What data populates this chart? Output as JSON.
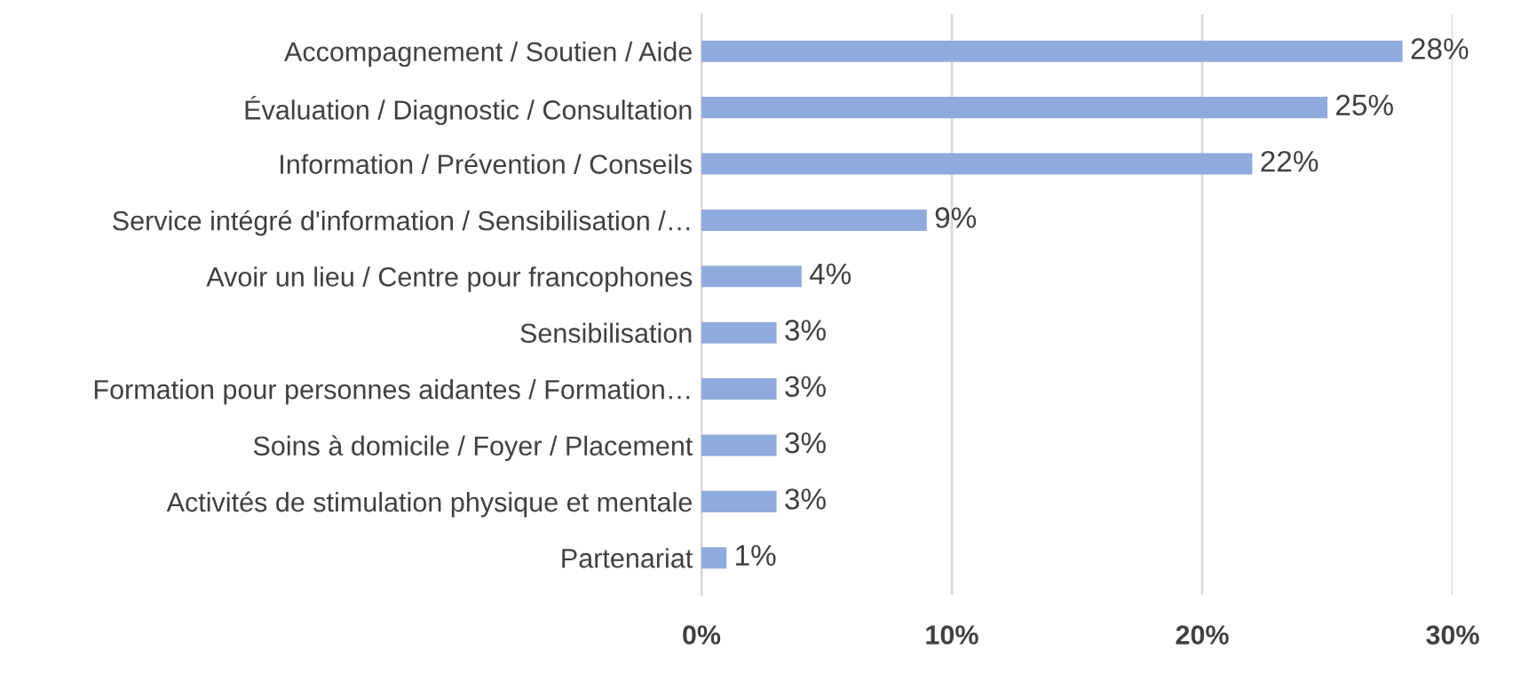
{
  "chart_data": {
    "type": "bar",
    "orientation": "horizontal",
    "categories": [
      "Accompagnement / Soutien / Aide",
      "Évaluation / Diagnostic / Consultation",
      "Information / Prévention / Conseils",
      "Service intégré d'information / Sensibilisation /…",
      "Avoir un lieu / Centre pour francophones",
      "Sensibilisation",
      "Formation pour personnes aidantes / Formation…",
      "Soins à domicile / Foyer / Placement",
      "Activités de stimulation physique et mentale",
      "Partenariat"
    ],
    "values": [
      28,
      25,
      22,
      9,
      4,
      3,
      3,
      3,
      3,
      1
    ],
    "value_labels": [
      "28%",
      "25%",
      "22%",
      "9%",
      "4%",
      "3%",
      "3%",
      "3%",
      "3%",
      "1%"
    ],
    "color": "#8faadc",
    "xlim": [
      0,
      30
    ],
    "xticks": [
      {
        "value": 0,
        "label": "0%"
      },
      {
        "value": 10,
        "label": "10%"
      },
      {
        "value": 20,
        "label": "20%"
      },
      {
        "value": 30,
        "label": "30%"
      }
    ],
    "grid": "x"
  }
}
